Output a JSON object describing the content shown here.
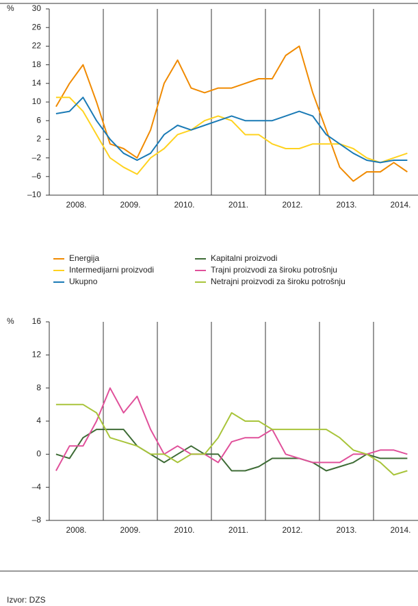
{
  "chart_data": [
    {
      "type": "line",
      "ylabel": "%",
      "categories": [
        null,
        "2008.",
        null,
        null,
        null,
        "2009.",
        null,
        null,
        null,
        "2010.",
        null,
        null,
        null,
        "2011.",
        null,
        null,
        null,
        "2012.",
        null,
        null,
        null,
        "2013.",
        null,
        null,
        null,
        "2014.",
        null
      ],
      "ylim": [
        -10,
        30
      ],
      "yticks": [
        30,
        26,
        22,
        18,
        14,
        10,
        6,
        {
          "value": 2,
          "label": "2"
        },
        {
          "value": -2,
          "label": "–2"
        },
        {
          "value": -6,
          "label": "–6"
        },
        {
          "value": -10,
          "label": "–10"
        }
      ],
      "series": [
        {
          "name": "Energija",
          "color": "#f08a00",
          "values": [
            9,
            14,
            18,
            10,
            1,
            0,
            -2,
            4,
            14,
            19,
            13,
            12,
            13,
            13,
            14,
            15,
            15,
            20,
            22,
            12,
            4,
            -4,
            -7,
            -5,
            -5,
            -3,
            -5
          ]
        },
        {
          "name": "Intermedijarni proizvodi",
          "color": "#ffd21f",
          "values": [
            11,
            11,
            8,
            3,
            -2,
            -4,
            -5.5,
            -2,
            0,
            3,
            4,
            6,
            7,
            6,
            3,
            3,
            1,
            0,
            0,
            1,
            1,
            1,
            0,
            -2,
            -3,
            -2,
            -1
          ]
        },
        {
          "name": "Ukupno",
          "color": "#1a7ab5",
          "values": [
            7.5,
            8,
            11,
            6,
            2,
            -1,
            -2.5,
            -1,
            3,
            5,
            4,
            5,
            6,
            7,
            6,
            6,
            6,
            7,
            8,
            7,
            3,
            1,
            -1,
            -2.5,
            -3,
            -2.5,
            -2.5
          ]
        }
      ]
    },
    {
      "type": "line",
      "ylabel": "%",
      "categories": [
        null,
        "2008.",
        null,
        null,
        null,
        "2009.",
        null,
        null,
        null,
        "2010.",
        null,
        null,
        null,
        "2011.",
        null,
        null,
        null,
        "2012.",
        null,
        null,
        null,
        "2013.",
        null,
        null,
        null,
        "2014.",
        null
      ],
      "ylim": [
        -8,
        16
      ],
      "yticks": [
        16,
        12,
        8,
        4,
        0,
        {
          "value": -4,
          "label": "–4"
        },
        {
          "value": -8,
          "label": "–8"
        }
      ],
      "series": [
        {
          "name": "Kapitalni proizvodi",
          "color": "#3d6b35",
          "values": [
            0,
            -0.5,
            2,
            3,
            3,
            3,
            1,
            0,
            -1,
            0,
            1,
            0,
            0,
            -2,
            -2,
            -1.5,
            -0.5,
            -0.5,
            -0.5,
            -1,
            -2,
            -1.5,
            -1,
            0,
            -0.5,
            -0.5,
            -0.5
          ]
        },
        {
          "name": "Trajni proizvodi za široku potrošnju",
          "color": "#e0509a",
          "values": [
            -2,
            1,
            1,
            4,
            8,
            5,
            7,
            3,
            0,
            1,
            0,
            0,
            -1,
            1.5,
            2,
            2,
            3,
            0,
            -0.5,
            -1,
            -1,
            -1,
            0,
            0,
            0.5,
            0.5,
            0
          ]
        },
        {
          "name": "Netrajni proizvodi za široku potrošnju",
          "color": "#a8c43a",
          "values": [
            6,
            6,
            6,
            5,
            2,
            1.5,
            1,
            0,
            0,
            -1,
            0,
            0,
            2,
            5,
            4,
            4,
            3,
            3,
            3,
            3,
            3,
            2,
            0.5,
            0,
            -1,
            -2.5,
            -2
          ]
        }
      ]
    }
  ],
  "footer": {
    "source": "Izvor: DZS"
  }
}
